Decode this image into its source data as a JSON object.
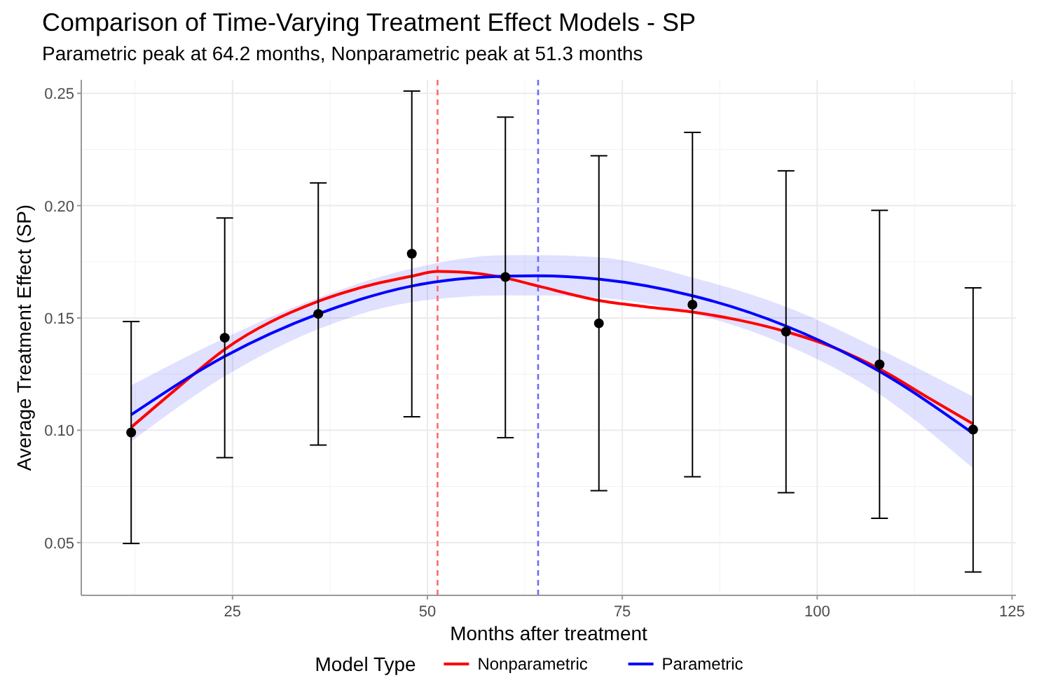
{
  "chart_data": {
    "type": "line",
    "title": "Comparison of Time-Varying Treatment Effect Models - SP",
    "subtitle": "Parametric peak at 64.2 months, Nonparametric peak at 51.3 months",
    "xlabel": "Months after treatment",
    "ylabel": "Average Treatment Effect (SP)",
    "legend_title": "Model Type",
    "legend": "bottom",
    "grid": true,
    "xlim": [
      5.6,
      125.5
    ],
    "xticks": [
      25,
      50,
      75,
      100,
      125
    ],
    "ylim": [
      0.0265,
      0.256
    ],
    "yticks": [
      0.05,
      {
        "value": 0.1,
        "label": "0.10"
      },
      0.15,
      {
        "value": 0.2,
        "label": "0.20"
      },
      0.25
    ],
    "ref_lines": [
      {
        "axis": "x",
        "value": 51.3,
        "color": "#ff6b6b",
        "line_style": "dashed"
      },
      {
        "axis": "x",
        "value": 64.2,
        "color": "#6b6bff",
        "line_style": "dashed"
      }
    ],
    "series": [
      {
        "type": "scatter",
        "color": "#000000",
        "marker": "circle",
        "x": [
          12,
          24,
          36,
          48,
          60,
          72,
          84,
          96,
          108,
          120
        ],
        "values": [
          0.099,
          0.1412,
          0.1518,
          0.1786,
          0.1682,
          0.1476,
          0.1559,
          0.1439,
          0.1293,
          0.1003
        ],
        "errors": [
          [
            0.0496,
            0.1484
          ],
          [
            0.0878,
            0.1945
          ],
          [
            0.0934,
            0.2101
          ],
          [
            0.106,
            0.251
          ],
          [
            0.0967,
            0.2394
          ],
          [
            0.0731,
            0.2222
          ],
          [
            0.0793,
            0.2326
          ],
          [
            0.0722,
            0.2155
          ],
          [
            0.0608,
            0.1979
          ],
          [
            0.0369,
            0.1634
          ]
        ]
      },
      {
        "name": "Nonparametric",
        "color": "#ff0000",
        "x": [
          12,
          18,
          24,
          36,
          42,
          48,
          51.3,
          54,
          60,
          64.2,
          72,
          78,
          84,
          90,
          96,
          102,
          108,
          114,
          120
        ],
        "values": [
          0.1013,
          0.119,
          0.136,
          0.1574,
          0.164,
          0.1686,
          0.1707,
          0.1705,
          0.1678,
          0.1642,
          0.1578,
          0.155,
          0.1526,
          0.149,
          0.1439,
          0.137,
          0.1273,
          0.115,
          0.1028
        ]
      },
      {
        "name": "Parametric",
        "color": "#0000ff",
        "x": [
          12,
          24,
          36,
          48,
          60,
          64.2,
          72,
          84,
          96,
          108,
          120
        ],
        "values": [
          0.1069,
          0.1329,
          0.1518,
          0.1642,
          0.1686,
          0.1688,
          0.1673,
          0.1599,
          0.1464,
          0.1262,
          0.0986
        ],
        "lower": [
          0.095,
          0.124,
          0.145,
          0.157,
          0.16,
          0.16,
          0.159,
          0.152,
          0.138,
          0.116,
          0.083
        ],
        "upper": [
          0.12,
          0.141,
          0.159,
          0.172,
          0.178,
          0.178,
          0.177,
          0.168,
          0.155,
          0.136,
          0.115
        ]
      }
    ]
  }
}
